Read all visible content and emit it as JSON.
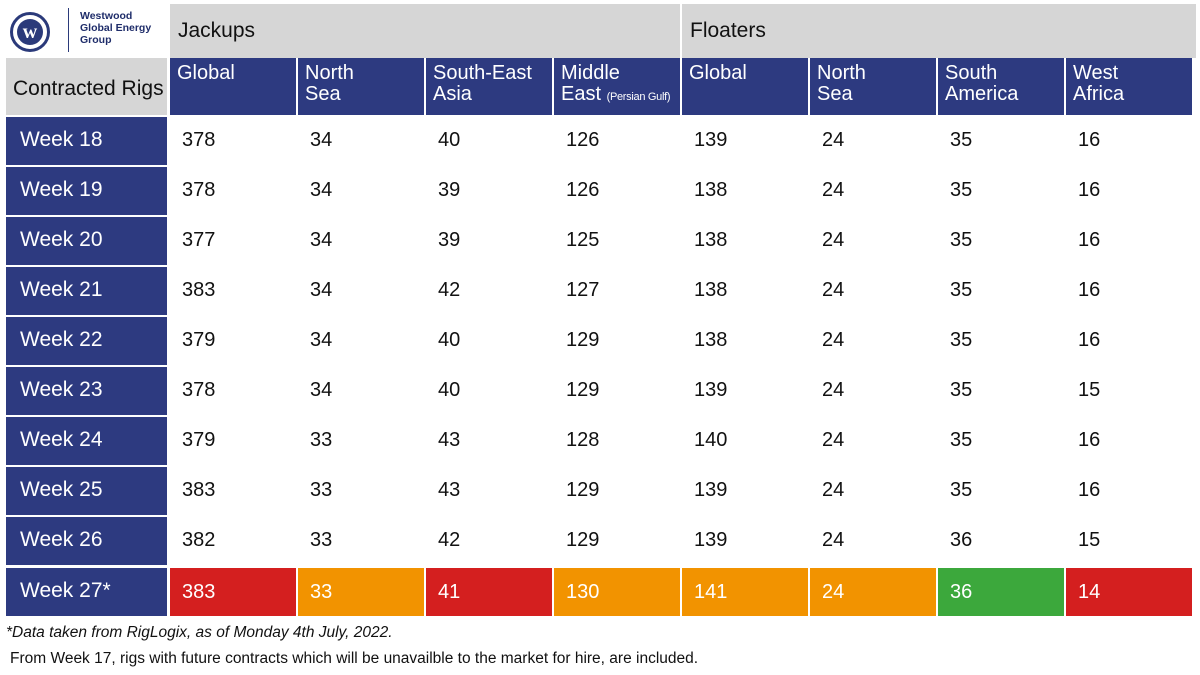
{
  "logo": {
    "mark_letter": "w",
    "brand_lines": [
      "Westwood",
      "Global Energy",
      "Group"
    ]
  },
  "table": {
    "corner_label": "Contracted Rigs",
    "groups": [
      {
        "label": "Jackups"
      },
      {
        "label": "Floaters"
      }
    ],
    "columns": [
      {
        "lines": [
          "Global"
        ]
      },
      {
        "lines": [
          "North",
          "Sea"
        ]
      },
      {
        "lines": [
          "South-East",
          "Asia"
        ]
      },
      {
        "lines": [
          "Middle",
          "East"
        ],
        "note": "(Persian Gulf)"
      },
      {
        "lines": [
          "Global"
        ]
      },
      {
        "lines": [
          "North",
          "Sea"
        ]
      },
      {
        "lines": [
          "South",
          "America"
        ]
      },
      {
        "lines": [
          "West",
          "Africa"
        ]
      }
    ],
    "rows": [
      {
        "label": "Week 18",
        "values": [
          378,
          34,
          40,
          126,
          139,
          24,
          35,
          16
        ]
      },
      {
        "label": "Week 19",
        "values": [
          378,
          34,
          39,
          126,
          138,
          24,
          35,
          16
        ]
      },
      {
        "label": "Week 20",
        "values": [
          377,
          34,
          39,
          125,
          138,
          24,
          35,
          16
        ]
      },
      {
        "label": "Week 21",
        "values": [
          383,
          34,
          42,
          127,
          138,
          24,
          35,
          16
        ]
      },
      {
        "label": "Week 22",
        "values": [
          379,
          34,
          40,
          129,
          138,
          24,
          35,
          16
        ]
      },
      {
        "label": "Week 23",
        "values": [
          378,
          34,
          40,
          129,
          139,
          24,
          35,
          15
        ]
      },
      {
        "label": "Week 24",
        "values": [
          379,
          33,
          43,
          128,
          140,
          24,
          35,
          16
        ]
      },
      {
        "label": "Week 25",
        "values": [
          383,
          33,
          43,
          129,
          139,
          24,
          35,
          16
        ]
      },
      {
        "label": "Week 26",
        "values": [
          382,
          33,
          42,
          129,
          139,
          24,
          36,
          15
        ]
      },
      {
        "label": "Week 27*",
        "values": [
          383,
          33,
          41,
          130,
          141,
          24,
          36,
          14
        ],
        "highlight": [
          "red",
          "orange",
          "red",
          "orange",
          "orange",
          "orange",
          "green",
          "red"
        ]
      }
    ]
  },
  "colors": {
    "header_navy": "#2d3a80",
    "group_grey": "#d6d6d6",
    "decrease_red": "#d41f1f",
    "flat_orange": "#f29300",
    "increase_green": "#3ca83c"
  },
  "footnotes": {
    "source": "*Data taken from RigLogix, as of Monday 4th July, 2022.",
    "note": "From Week 17, rigs with future contracts which will be unavailble to the market for hire, are included."
  },
  "chart_data": {
    "type": "table",
    "title": "",
    "row_header": "Contracted Rigs",
    "column_groups": [
      {
        "name": "Jackups",
        "columns": [
          "Global",
          "North Sea",
          "South-East Asia",
          "Middle East (Persian Gulf)"
        ]
      },
      {
        "name": "Floaters",
        "columns": [
          "Global",
          "North Sea",
          "South America",
          "West Africa"
        ]
      }
    ],
    "categories": [
      "Week 18",
      "Week 19",
      "Week 20",
      "Week 21",
      "Week 22",
      "Week 23",
      "Week 24",
      "Week 25",
      "Week 26",
      "Week 27*"
    ],
    "series": [
      {
        "name": "Jackups Global",
        "values": [
          378,
          378,
          377,
          383,
          379,
          378,
          379,
          383,
          382,
          383
        ]
      },
      {
        "name": "Jackups North Sea",
        "values": [
          34,
          34,
          34,
          34,
          34,
          34,
          33,
          33,
          33,
          33
        ]
      },
      {
        "name": "Jackups South-East Asia",
        "values": [
          40,
          39,
          39,
          42,
          40,
          40,
          43,
          43,
          42,
          41
        ]
      },
      {
        "name": "Jackups Middle East (Persian Gulf)",
        "values": [
          126,
          126,
          125,
          127,
          129,
          129,
          128,
          129,
          129,
          130
        ]
      },
      {
        "name": "Floaters Global",
        "values": [
          139,
          138,
          138,
          138,
          138,
          139,
          140,
          139,
          139,
          141
        ]
      },
      {
        "name": "Floaters North Sea",
        "values": [
          24,
          24,
          24,
          24,
          24,
          24,
          24,
          24,
          24,
          24
        ]
      },
      {
        "name": "Floaters South America",
        "values": [
          35,
          35,
          35,
          35,
          35,
          35,
          35,
          35,
          36,
          36
        ]
      },
      {
        "name": "Floaters West Africa",
        "values": [
          16,
          16,
          16,
          16,
          16,
          15,
          16,
          16,
          15,
          14
        ]
      }
    ]
  }
}
